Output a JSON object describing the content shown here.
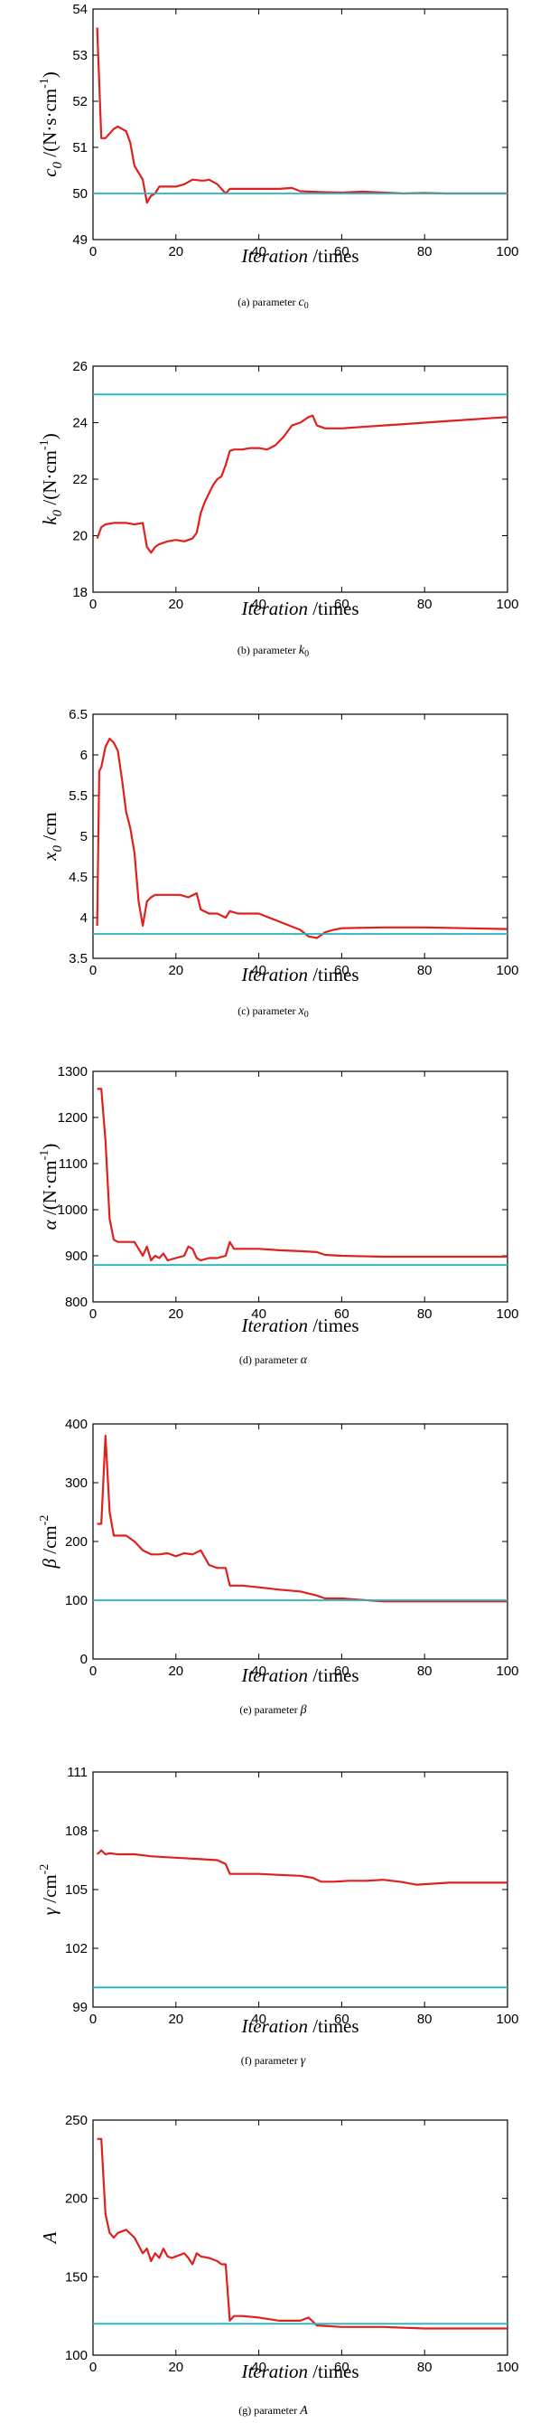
{
  "colors": {
    "estimate": "#e0201c",
    "true_value": "#24b4c0",
    "axes": "#000000"
  },
  "chart_data": [
    {
      "type": "line",
      "xlabel": "Iteration /times",
      "ylabel": "c0 /(N·s·cm-1)",
      "caption": "(a) parameter  c0",
      "xlim": [
        0,
        100
      ],
      "ylim": [
        49,
        54
      ],
      "xticks": [
        0,
        20,
        40,
        60,
        80,
        100
      ],
      "yticks": [
        49,
        50,
        51,
        52,
        53,
        54
      ],
      "series": [
        {
          "role": "estimate",
          "x": [
            1,
            1.5,
            2,
            3,
            5,
            6,
            7,
            8,
            9,
            10,
            11,
            12,
            13,
            14,
            15,
            16,
            18,
            20,
            22,
            24,
            26,
            27,
            28,
            30,
            32,
            33,
            35,
            40,
            45,
            48,
            50,
            55,
            60,
            65,
            70,
            75,
            80,
            85,
            90,
            95,
            100
          ],
          "y": [
            53.6,
            52.4,
            51.2,
            51.2,
            51.4,
            51.45,
            51.4,
            51.35,
            51.1,
            50.6,
            50.45,
            50.3,
            49.8,
            49.95,
            50.0,
            50.15,
            50.15,
            50.15,
            50.2,
            50.3,
            50.28,
            50.28,
            50.3,
            50.2,
            50.0,
            50.1,
            50.1,
            50.1,
            50.1,
            50.12,
            50.05,
            50.03,
            50.02,
            50.04,
            50.02,
            50.0,
            50.01,
            50.0,
            50.0,
            50.0,
            50.0
          ]
        },
        {
          "role": "true_value",
          "x": [
            0,
            100
          ],
          "y": [
            50,
            50
          ]
        }
      ]
    },
    {
      "type": "line",
      "xlabel": "Iteration /times",
      "ylabel": "k0 /(N·cm-1)",
      "caption": "(b) parameter  k0",
      "xlim": [
        0,
        100
      ],
      "ylim": [
        18,
        26
      ],
      "xticks": [
        0,
        20,
        40,
        60,
        80,
        100
      ],
      "yticks": [
        18,
        20,
        22,
        24,
        26
      ],
      "series": [
        {
          "role": "estimate",
          "x": [
            1,
            2,
            3,
            5,
            8,
            10,
            12,
            13,
            14,
            15,
            16,
            18,
            20,
            22,
            24,
            25,
            26,
            27,
            28,
            29,
            30,
            31,
            32,
            33,
            34,
            36,
            38,
            40,
            42,
            44,
            46,
            48,
            50,
            52,
            53,
            54,
            56,
            60,
            65,
            70,
            75,
            80,
            85,
            90,
            95,
            100
          ],
          "y": [
            19.9,
            20.3,
            20.4,
            20.45,
            20.45,
            20.4,
            20.45,
            19.6,
            19.4,
            19.6,
            19.7,
            19.8,
            19.85,
            19.8,
            19.9,
            20.1,
            20.8,
            21.2,
            21.5,
            21.8,
            22.0,
            22.1,
            22.5,
            23.0,
            23.05,
            23.05,
            23.1,
            23.1,
            23.05,
            23.2,
            23.5,
            23.9,
            24.0,
            24.2,
            24.25,
            23.9,
            23.8,
            23.8,
            23.85,
            23.9,
            23.95,
            24.0,
            24.05,
            24.1,
            24.15,
            24.2
          ]
        },
        {
          "role": "true_value",
          "x": [
            0,
            100
          ],
          "y": [
            25,
            25
          ]
        }
      ]
    },
    {
      "type": "line",
      "xlabel": "Iteration /times",
      "ylabel": "x0 /cm",
      "caption": "(c) parameter  x0",
      "xlim": [
        0,
        100
      ],
      "ylim": [
        3.5,
        6.5
      ],
      "xticks": [
        0,
        20,
        40,
        60,
        80,
        100
      ],
      "yticks": [
        3.5,
        4,
        4.5,
        5,
        5.5,
        6,
        6.5
      ],
      "series": [
        {
          "role": "estimate",
          "x": [
            1,
            1.5,
            2,
            3,
            4,
            5,
            6,
            7,
            8,
            9,
            10,
            11,
            12,
            13,
            14,
            15,
            17,
            19,
            21,
            23,
            25,
            26,
            28,
            30,
            32,
            33,
            35,
            40,
            45,
            50,
            52,
            54,
            56,
            58,
            60,
            70,
            80,
            90,
            100
          ],
          "y": [
            3.9,
            5.8,
            5.85,
            6.1,
            6.2,
            6.15,
            6.05,
            5.7,
            5.3,
            5.1,
            4.8,
            4.2,
            3.9,
            4.2,
            4.25,
            4.28,
            4.28,
            4.28,
            4.28,
            4.25,
            4.3,
            4.1,
            4.05,
            4.05,
            4.0,
            4.08,
            4.05,
            4.05,
            3.95,
            3.85,
            3.77,
            3.75,
            3.82,
            3.85,
            3.87,
            3.88,
            3.88,
            3.87,
            3.86
          ]
        },
        {
          "role": "true_value",
          "x": [
            0,
            100
          ],
          "y": [
            3.8,
            3.8
          ]
        }
      ]
    },
    {
      "type": "line",
      "xlabel": "Iteration /times",
      "ylabel": "α /(N·cm-1)",
      "caption": "(d) parameter  α",
      "xlim": [
        0,
        100
      ],
      "ylim": [
        800,
        1300
      ],
      "xticks": [
        0,
        20,
        40,
        60,
        80,
        100
      ],
      "yticks": [
        800,
        900,
        1000,
        1100,
        1200,
        1300
      ],
      "series": [
        {
          "role": "estimate",
          "x": [
            1,
            2,
            3,
            4,
            5,
            6,
            8,
            10,
            12,
            13,
            14,
            15,
            16,
            17,
            18,
            20,
            22,
            23,
            24,
            25,
            26,
            28,
            30,
            32,
            33,
            34,
            35,
            40,
            45,
            50,
            54,
            56,
            60,
            70,
            80,
            90,
            100
          ],
          "y": [
            1262,
            1262,
            1150,
            980,
            935,
            930,
            930,
            930,
            900,
            920,
            890,
            900,
            895,
            905,
            890,
            895,
            900,
            920,
            915,
            895,
            890,
            895,
            895,
            900,
            930,
            915,
            915,
            915,
            912,
            910,
            908,
            902,
            900,
            898,
            898,
            898,
            898
          ]
        },
        {
          "role": "true_value",
          "x": [
            0,
            100
          ],
          "y": [
            880,
            880
          ]
        }
      ]
    },
    {
      "type": "line",
      "xlabel": "Iteration /times",
      "ylabel": "β /cm-2",
      "caption": "(e) parameter  β",
      "xlim": [
        0,
        100
      ],
      "ylim": [
        0,
        400
      ],
      "xticks": [
        0,
        20,
        40,
        60,
        80,
        100
      ],
      "yticks": [
        0,
        100,
        200,
        300,
        400
      ],
      "series": [
        {
          "role": "estimate",
          "x": [
            1,
            2,
            3,
            4,
            5,
            6,
            8,
            10,
            12,
            14,
            16,
            18,
            20,
            22,
            24,
            26,
            28,
            30,
            32,
            33,
            34,
            36,
            40,
            45,
            50,
            54,
            56,
            60,
            70,
            80,
            90,
            100
          ],
          "y": [
            230,
            230,
            380,
            250,
            210,
            210,
            210,
            200,
            185,
            178,
            178,
            180,
            175,
            180,
            178,
            185,
            160,
            155,
            155,
            125,
            125,
            125,
            122,
            118,
            115,
            108,
            103,
            103,
            98,
            98,
            98,
            98
          ]
        },
        {
          "role": "true_value",
          "x": [
            0,
            100
          ],
          "y": [
            100,
            100
          ]
        }
      ]
    },
    {
      "type": "line",
      "xlabel": "Iteration /times",
      "ylabel": "γ /cm-2",
      "caption": "(f) parameter  γ",
      "xlim": [
        0,
        100
      ],
      "ylim": [
        99,
        111
      ],
      "xticks": [
        0,
        20,
        40,
        60,
        80,
        100
      ],
      "yticks": [
        99,
        102,
        105,
        108,
        111
      ],
      "series": [
        {
          "role": "estimate",
          "x": [
            1,
            2,
            3,
            4,
            6,
            10,
            14,
            18,
            22,
            26,
            30,
            32,
            33,
            35,
            40,
            45,
            50,
            53,
            55,
            58,
            62,
            66,
            70,
            74,
            78,
            82,
            86,
            90,
            95,
            100
          ],
          "y": [
            106.8,
            107.0,
            106.8,
            106.85,
            106.8,
            106.8,
            106.7,
            106.65,
            106.6,
            106.55,
            106.5,
            106.3,
            105.8,
            105.8,
            105.8,
            105.75,
            105.7,
            105.6,
            105.4,
            105.4,
            105.45,
            105.45,
            105.5,
            105.4,
            105.25,
            105.3,
            105.35,
            105.35,
            105.35,
            105.35
          ]
        },
        {
          "role": "true_value",
          "x": [
            0,
            100
          ],
          "y": [
            100,
            100
          ]
        }
      ]
    },
    {
      "type": "line",
      "xlabel": "Iteration /times",
      "ylabel": "A",
      "caption": "(g) parameter  A",
      "xlim": [
        0,
        100
      ],
      "ylim": [
        100,
        250
      ],
      "xticks": [
        0,
        20,
        40,
        60,
        80,
        100
      ],
      "yticks": [
        100,
        150,
        200,
        250
      ],
      "series": [
        {
          "role": "estimate",
          "x": [
            1,
            2,
            3,
            4,
            5,
            6,
            8,
            10,
            12,
            13,
            14,
            15,
            16,
            17,
            18,
            19,
            20,
            22,
            23,
            24,
            25,
            26,
            28,
            30,
            31,
            32,
            33,
            34,
            36,
            40,
            45,
            50,
            52,
            54,
            60,
            70,
            80,
            90,
            100
          ],
          "y": [
            238,
            238,
            190,
            178,
            175,
            178,
            180,
            175,
            165,
            168,
            160,
            165,
            162,
            168,
            163,
            162,
            163,
            165,
            162,
            158,
            165,
            163,
            162,
            160,
            158,
            158,
            122,
            125,
            125,
            124,
            122,
            122,
            124,
            119,
            118,
            118,
            117,
            117,
            117
          ]
        },
        {
          "role": "true_value",
          "x": [
            0,
            100
          ],
          "y": [
            120,
            120
          ]
        }
      ]
    }
  ]
}
